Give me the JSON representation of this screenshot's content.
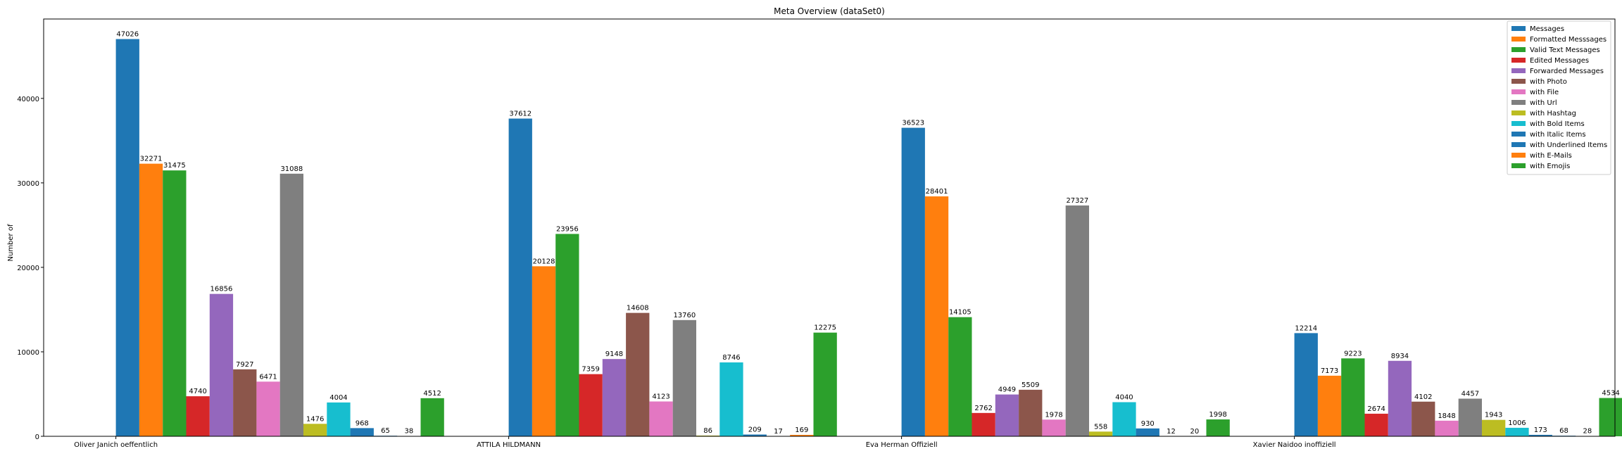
{
  "chart_data": {
    "type": "bar",
    "title": "Meta Overview (dataSet0)",
    "xlabel": "",
    "ylabel": "Number of",
    "ylim": [
      0,
      49400
    ],
    "yticks": [
      0,
      10000,
      20000,
      30000,
      40000
    ],
    "grid": false,
    "legend_position": "top-right",
    "categories": [
      "Oliver Janich oeffentlich",
      "ATTILA HILDMANN",
      "Eva Herman Offiziell",
      "Xavier Naidoo inoffiziell"
    ],
    "series": [
      {
        "name": "Messages",
        "color": "#1f77b4",
        "values": [
          47026,
          37612,
          36523,
          12214
        ]
      },
      {
        "name": "Formatted Messsages",
        "color": "#ff7f0e",
        "values": [
          32271,
          20128,
          28401,
          7173
        ]
      },
      {
        "name": "Valid Text Messages",
        "color": "#2ca02c",
        "values": [
          31475,
          23956,
          14105,
          9223
        ]
      },
      {
        "name": "Edited Messages",
        "color": "#d62728",
        "values": [
          4740,
          7359,
          2762,
          2674
        ]
      },
      {
        "name": "Forwarded Messages",
        "color": "#9467bd",
        "values": [
          16856,
          9148,
          4949,
          8934
        ]
      },
      {
        "name": "with Photo",
        "color": "#8c564b",
        "values": [
          7927,
          14608,
          5509,
          4102
        ]
      },
      {
        "name": "with File",
        "color": "#e377c2",
        "values": [
          6471,
          4123,
          1978,
          1848
        ]
      },
      {
        "name": "with Url",
        "color": "#7f7f7f",
        "values": [
          31088,
          13760,
          27327,
          4457
        ]
      },
      {
        "name": "with Hashtag",
        "color": "#bcbd22",
        "values": [
          1476,
          86,
          558,
          1943
        ]
      },
      {
        "name": "with Bold Items",
        "color": "#17becf",
        "values": [
          4004,
          8746,
          4040,
          1006
        ]
      },
      {
        "name": "with Italic Items",
        "color": "#1f77b4",
        "values": [
          968,
          209,
          930,
          173
        ]
      },
      {
        "name": "with Underlined Items",
        "color": "#1f77b4",
        "values": [
          65,
          17,
          12,
          68
        ]
      },
      {
        "name": "with E-Mails",
        "color": "#ff7f0e",
        "values": [
          38,
          169,
          20,
          28
        ]
      },
      {
        "name": "with Emojis",
        "color": "#2ca02c",
        "values": [
          4512,
          12275,
          1998,
          4534
        ]
      }
    ]
  }
}
